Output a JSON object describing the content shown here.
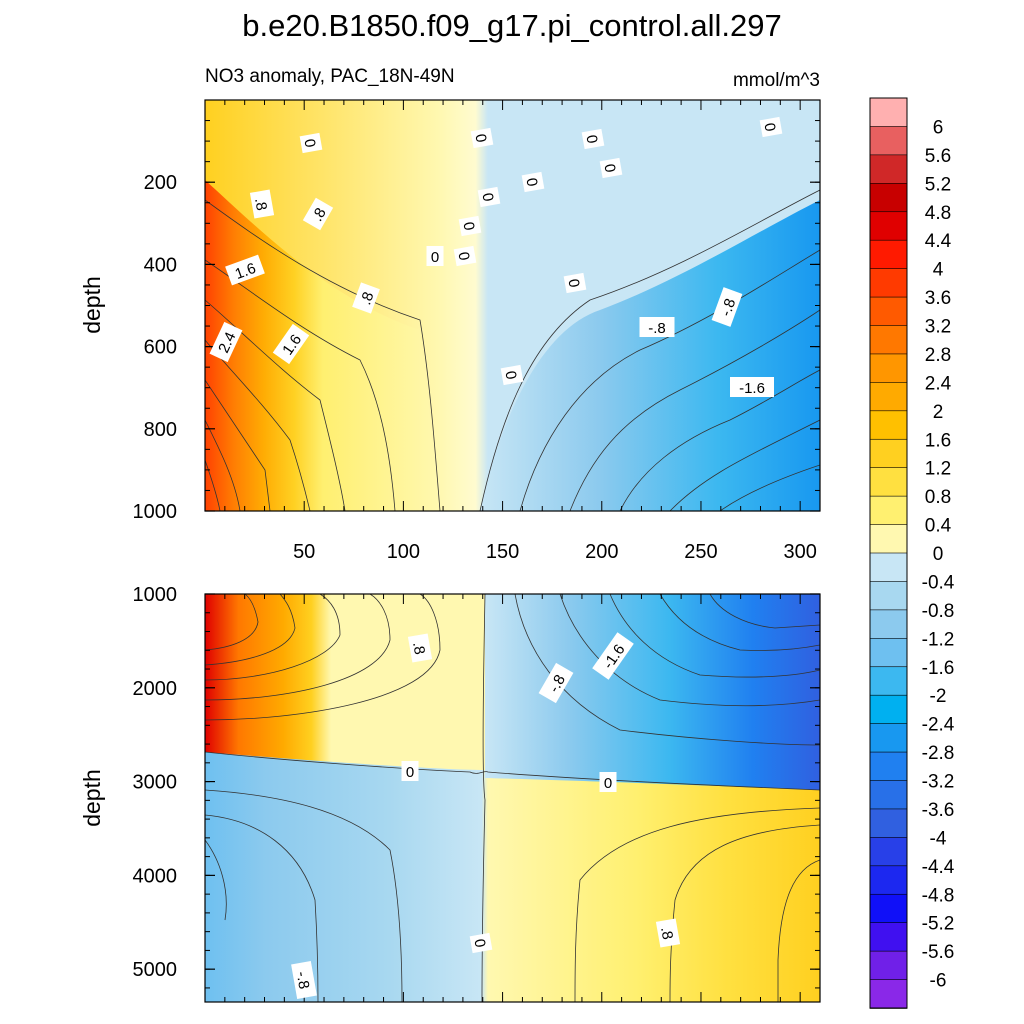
{
  "title": "b.e20.B1850.f09_g17.pi_control.all.297",
  "subtitle_left": "NO3 anomaly, PAC_18N-49N",
  "units": "mmol/m^3",
  "chart_data": [
    {
      "type": "heatmap",
      "panel": "upper",
      "xlabel": "",
      "ylabel": "depth",
      "xlim": [
        0,
        310
      ],
      "ylim": [
        1000,
        0
      ],
      "xticks": [
        "50",
        "100",
        "150",
        "200",
        "250",
        "300"
      ],
      "yticks": [
        "200",
        "400",
        "600",
        "800",
        "1000"
      ],
      "contour_labels": [
        "0",
        "0",
        "0",
        "0",
        "0",
        "0",
        "0",
        "0",
        "0",
        "0",
        "0",
        "0",
        ".8",
        ".8",
        ".8",
        "1.6",
        "1.6",
        "2.4",
        "-.8",
        "-.8",
        "-1.6"
      ]
    },
    {
      "type": "heatmap",
      "panel": "lower",
      "xlabel": "",
      "ylabel": "depth",
      "xlim": [
        0,
        310
      ],
      "ylim": [
        5350,
        1000
      ],
      "yticks": [
        "1000",
        "2000",
        "3000",
        "4000",
        "5000"
      ],
      "contour_labels": [
        ".8",
        "-.8",
        "-1.6",
        "0",
        "0",
        "-.8",
        "0",
        ".8"
      ]
    }
  ],
  "colorbar": {
    "levels": [
      "6",
      "5.6",
      "5.2",
      "4.8",
      "4.4",
      "4",
      "3.6",
      "3.2",
      "2.8",
      "2.4",
      "2",
      "1.6",
      "1.2",
      "0.8",
      "0.4",
      "0",
      "-0.4",
      "-0.8",
      "-1.2",
      "-1.6",
      "-2",
      "-2.4",
      "-2.8",
      "-3.2",
      "-3.6",
      "-4",
      "-4.4",
      "-4.8",
      "-5.2",
      "-5.6",
      "-6"
    ],
    "colors": [
      "#ffb0b0",
      "#e86060",
      "#d02828",
      "#c80000",
      "#e00000",
      "#ff1a00",
      "#ff3a00",
      "#ff5a00",
      "#ff7800",
      "#ff9600",
      "#ffaa00",
      "#ffc000",
      "#ffd020",
      "#ffe040",
      "#fff070",
      "#fff8b0",
      "#c8e6f5",
      "#a8d8f0",
      "#8ccaee",
      "#6ec0f0",
      "#3cb8f0",
      "#00b0f0",
      "#1898f0",
      "#2080f0",
      "#2870e8",
      "#3060e0",
      "#2840e8",
      "#1c28f0",
      "#1010f8",
      "#4010f0",
      "#7020e8",
      "#8a28e8"
    ]
  }
}
